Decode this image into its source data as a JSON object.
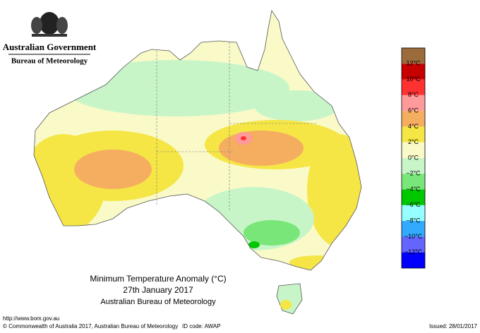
{
  "header": {
    "government": "Australian Government",
    "agency": "Bureau of Meteorology"
  },
  "legend": {
    "labels": [
      "12°C",
      "10°C",
      "8°C",
      "6°C",
      "4°C",
      "2°C",
      "0°C",
      "−2°C",
      "−4°C",
      "−6°C",
      "−8°C",
      "−10°C",
      "−12°C"
    ],
    "colors": [
      "#9c6b3c",
      "#c80000",
      "#ff3232",
      "#ff9a9a",
      "#f5ae60",
      "#f5e646",
      "#fafac8",
      "#c8f5c8",
      "#78e678",
      "#00c800",
      "#96ffff",
      "#32aaff",
      "#6464ff",
      "#0000ff"
    ]
  },
  "caption": {
    "title": "Minimum Temperature Anomaly (°C)",
    "date": "27th January 2017",
    "source": "Australian Bureau of Meteorology"
  },
  "footer": {
    "url": "http://www.bom.gov.au",
    "copyright": "© Commonwealth of Australia 2017, Australian Bureau of Meteorology",
    "id_code": "ID code: AWAP",
    "issued": "Issued: 28/01/2017"
  }
}
